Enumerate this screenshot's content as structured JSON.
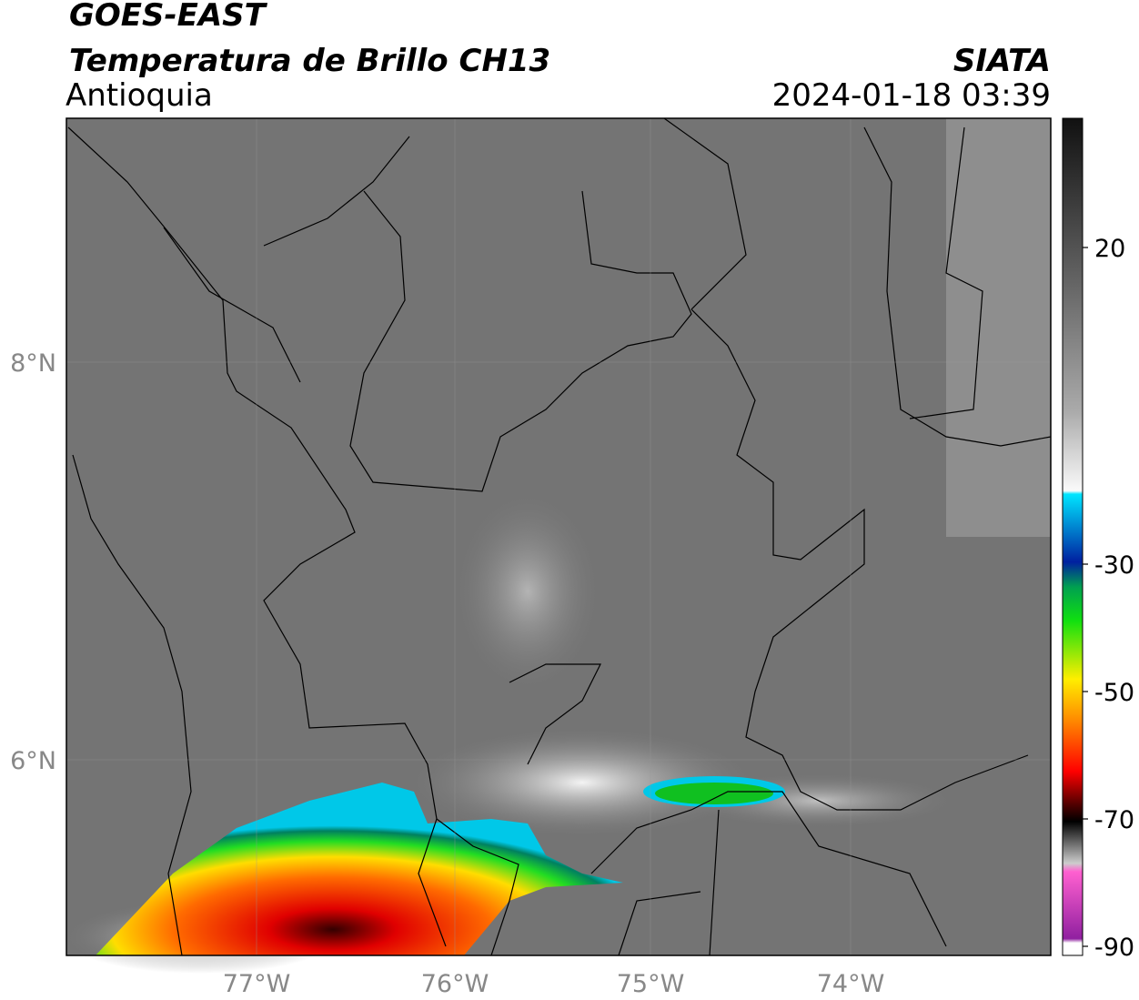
{
  "header": {
    "source": "GOES-EAST",
    "title": "Temperatura de Brillo CH13",
    "region": "Antioquia",
    "agency": "SIATA",
    "datetime": "2024-01-18 03:39"
  },
  "map": {
    "lat_labels": [
      "8°N",
      "6°N"
    ],
    "lon_labels": [
      "77°W",
      "76°W",
      "75°W",
      "74°W"
    ]
  },
  "colorbar": {
    "labels": [
      "20",
      "-30",
      "-50",
      "-70",
      "-90"
    ]
  }
}
